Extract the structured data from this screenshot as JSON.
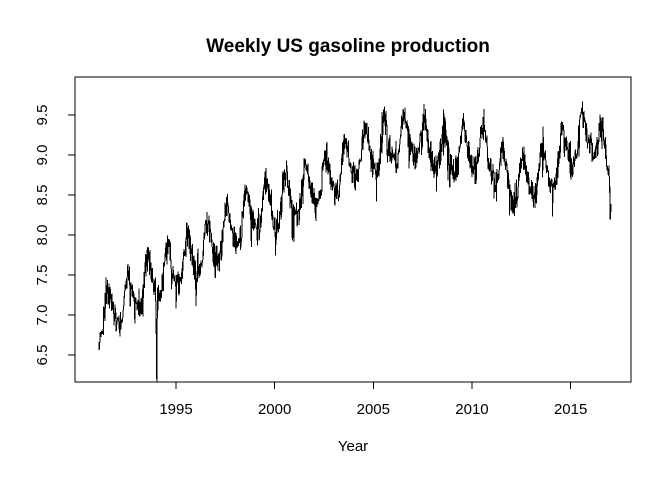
{
  "window": {
    "background_color": "#ffffff",
    "foreground_color": "#000000"
  },
  "chart_data": {
    "type": "line",
    "title": "Weekly US gasoline production",
    "xlabel": "Year",
    "ylabel": "",
    "legend": null,
    "grid": false,
    "line_color": "#000000",
    "axis_color": "#000000",
    "x_ticks": [
      "1995",
      "2000",
      "2005",
      "2010",
      "2015"
    ],
    "x_tick_values": [
      1995,
      2000,
      2005,
      2010,
      2015
    ],
    "y_ticks": [
      "6.5",
      "7.0",
      "7.5",
      "8.0",
      "8.5",
      "9.0",
      "9.5"
    ],
    "y_tick_values": [
      6.5,
      7.0,
      7.5,
      8.0,
      8.5,
      9.0,
      9.5
    ],
    "xlim": [
      1989.88,
      2018.06
    ],
    "ylim": [
      6.1625,
      9.975
    ],
    "x_range_data": [
      1991.085,
      2017.05
    ],
    "y_range_data": [
      6.3,
      9.85
    ],
    "series": {
      "name": "weekly-us-gasoline-production",
      "frequency_per_year": 52,
      "trend_anchors": [
        [
          1991.05,
          7.0
        ],
        [
          1992,
          7.1
        ],
        [
          1993,
          7.3
        ],
        [
          1994,
          7.45
        ],
        [
          1995,
          7.6
        ],
        [
          1996,
          7.72
        ],
        [
          1997,
          7.9
        ],
        [
          1998,
          8.12
        ],
        [
          1999,
          8.3
        ],
        [
          2000,
          8.38
        ],
        [
          2001,
          8.48
        ],
        [
          2002,
          8.62
        ],
        [
          2003,
          8.75
        ],
        [
          2004,
          8.95
        ],
        [
          2005,
          9.05
        ],
        [
          2006,
          9.15
        ],
        [
          2007,
          9.25
        ],
        [
          2008,
          9.05
        ],
        [
          2009,
          9.0
        ],
        [
          2010,
          9.08
        ],
        [
          2011,
          8.95
        ],
        [
          2012,
          8.62
        ],
        [
          2013,
          8.7
        ],
        [
          2014,
          8.82
        ],
        [
          2015,
          9.08
        ],
        [
          2016,
          9.32
        ],
        [
          2017.1,
          8.8
        ]
      ],
      "seasonal_amplitude": 0.28,
      "seasonal_peak_fraction": 0.6,
      "noise_amplitude": 0.13,
      "anomalies": [
        [
          1994.02,
          -0.95
        ],
        [
          1996.02,
          -0.45
        ],
        [
          2000.05,
          -0.4
        ],
        [
          2005.72,
          -0.38
        ],
        [
          2017.02,
          -0.55
        ]
      ]
    }
  }
}
